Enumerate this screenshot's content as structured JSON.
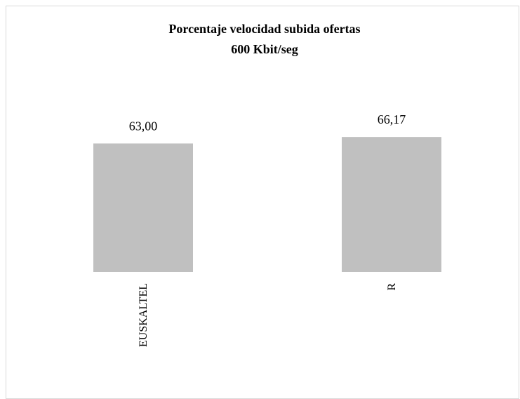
{
  "chart_data": {
    "type": "bar",
    "title": "Porcentaje velocidad subida ofertas",
    "subtitle": "600 Kbit/seg",
    "categories": [
      "EUSKALTEL",
      "R"
    ],
    "values": [
      63.0,
      66.17
    ],
    "data_labels": [
      "63,00",
      "66,17"
    ],
    "bar_color": "#c0c0c0",
    "ylim": [
      0,
      100
    ],
    "grid": false,
    "legend": "none"
  }
}
